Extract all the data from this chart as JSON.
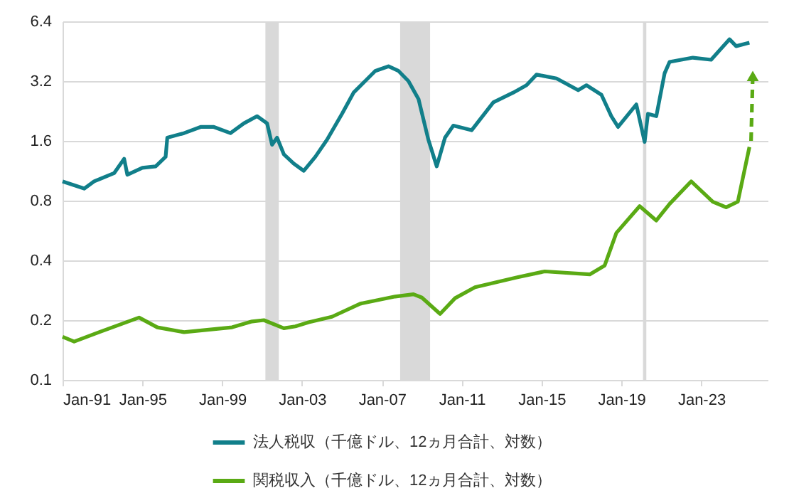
{
  "chart_data": {
    "type": "line",
    "x": [
      "1991-01",
      "1992-02",
      "1992-08",
      "1993-08",
      "1994-02",
      "1994-04",
      "1995-01",
      "1995-09",
      "1996-03",
      "1996-04",
      "1997-02",
      "1997-12",
      "1998-08",
      "1999-06",
      "2000-02",
      "2000-10",
      "2001-04",
      "2001-07",
      "2001-10",
      "2002-02",
      "2002-08",
      "2003-02",
      "2003-09",
      "2004-04",
      "2005-01",
      "2005-08",
      "2006-09",
      "2007-05",
      "2007-11",
      "2008-05",
      "2008-11",
      "2009-05",
      "2009-10",
      "2010-03",
      "2010-08",
      "2011-07",
      "2012-08",
      "2013-08",
      "2014-04",
      "2014-10",
      "2015-10",
      "2016-11",
      "2017-04",
      "2018-01",
      "2018-07",
      "2018-11",
      "2019-10",
      "2020-03",
      "2020-05",
      "2020-10",
      "2021-03",
      "2021-06",
      "2022-08",
      "2023-07",
      "2024-06",
      "2024-10",
      "2025-06"
    ],
    "series": [
      {
        "name": "法人税収（千億ドル、12ヵ月合計、対数）",
        "color": "#117f8a",
        "values": [
          1.0,
          0.92,
          1.0,
          1.1,
          1.3,
          1.08,
          1.17,
          1.19,
          1.33,
          1.66,
          1.75,
          1.88,
          1.88,
          1.75,
          1.96,
          2.13,
          1.96,
          1.53,
          1.66,
          1.37,
          1.23,
          1.13,
          1.33,
          1.62,
          2.19,
          2.8,
          3.6,
          3.8,
          3.6,
          3.2,
          2.6,
          1.62,
          1.19,
          1.66,
          1.91,
          1.81,
          2.5,
          2.8,
          3.05,
          3.45,
          3.3,
          2.88,
          3.05,
          2.73,
          2.13,
          1.88,
          2.44,
          1.58,
          2.19,
          2.13,
          3.5,
          4.0,
          4.2,
          4.1,
          5.2,
          4.8,
          5.0
        ]
      },
      {
        "name": "関税収入（千億ドル、12ヵ月合計、対数）",
        "color": "#5aaa14",
        "x": [
          "1991-01",
          "1991-08",
          "1992-11",
          "1994-11",
          "1995-10",
          "1997-02",
          "1999-07",
          "2000-07",
          "2001-02",
          "2002-02",
          "2002-09",
          "2003-05",
          "2004-07",
          "2005-12",
          "2007-09",
          "2008-08",
          "2009-01",
          "2009-12",
          "2010-09",
          "2011-09",
          "2013-10",
          "2015-03",
          "2017-06",
          "2018-03",
          "2018-10",
          "2019-12",
          "2020-10",
          "2021-06",
          "2022-07",
          "2023-08",
          "2024-04",
          "2024-11",
          "2025-06"
        ],
        "values": [
          0.165,
          0.156,
          0.174,
          0.206,
          0.184,
          0.174,
          0.184,
          0.197,
          0.2,
          0.182,
          0.186,
          0.195,
          0.208,
          0.242,
          0.263,
          0.27,
          0.26,
          0.215,
          0.258,
          0.293,
          0.328,
          0.352,
          0.34,
          0.377,
          0.55,
          0.75,
          0.635,
          0.77,
          1.0,
          0.79,
          0.74,
          0.79,
          1.49
        ]
      },
      {
        "type": "line",
        "color": "#5aaa14",
        "x": [
          "2025-07",
          "2025-08"
        ],
        "values": [
          1.6,
          3.4
        ],
        "line_style": "dashed",
        "marker": "triangle"
      }
    ],
    "bands": [
      {
        "axis": "x",
        "from": "2001-03",
        "to": "2001-11",
        "color": "#d9d9d9"
      },
      {
        "axis": "x",
        "from": "2007-12",
        "to": "2009-06",
        "color": "#d9d9d9"
      },
      {
        "axis": "x",
        "from": "2020-02",
        "to": "2020-04",
        "color": "#d9d9d9"
      }
    ],
    "xlim": [
      "1991-01",
      "2026-05"
    ],
    "xticks": [
      {
        "value": "1991-01",
        "label": "Jan-91"
      },
      {
        "value": "1995-01",
        "label": "Jan-95"
      },
      {
        "value": "1999-01",
        "label": "Jan-99"
      },
      {
        "value": "2003-01",
        "label": "Jan-03"
      },
      {
        "value": "2007-01",
        "label": "Jan-07"
      },
      {
        "value": "2011-01",
        "label": "Jan-11"
      },
      {
        "value": "2015-01",
        "label": "Jan-15"
      },
      {
        "value": "2019-01",
        "label": "Jan-19"
      },
      {
        "value": "2023-01",
        "label": "Jan-23"
      }
    ],
    "log": "y",
    "ylim": [
      0.1,
      6.4
    ],
    "yticks": [
      0.1,
      0.2,
      0.4,
      0.8,
      1.6,
      3.2,
      6.4
    ],
    "grid": "y",
    "legend": "bottom",
    "line_style": "solid",
    "marker": "none"
  }
}
